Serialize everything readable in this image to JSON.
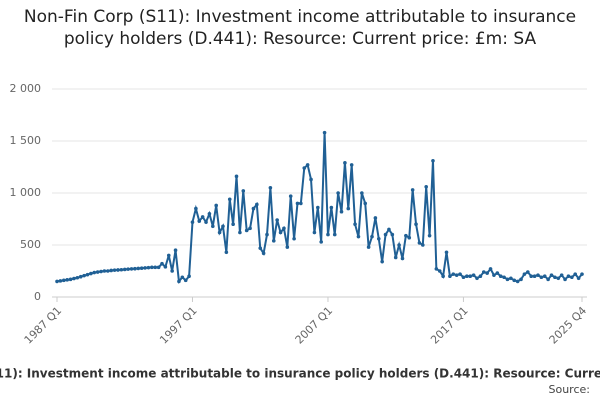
{
  "chart_data": {
    "type": "line",
    "title": "Non-Fin Corp (S11): Investment income attributable to insurance policy holders (D.441): Resource: Current price: £m: SA",
    "categories": [
      "1987 Q1",
      null,
      null,
      null,
      null,
      null,
      null,
      null,
      null,
      null,
      null,
      null,
      null,
      null,
      null,
      null,
      null,
      null,
      null,
      null,
      null,
      null,
      null,
      null,
      null,
      null,
      null,
      null,
      null,
      null,
      null,
      null,
      null,
      null,
      null,
      null,
      null,
      null,
      null,
      null,
      "1997 Q1",
      null,
      null,
      null,
      null,
      null,
      null,
      null,
      null,
      null,
      null,
      null,
      null,
      null,
      null,
      null,
      null,
      null,
      null,
      null,
      null,
      null,
      null,
      null,
      null,
      null,
      null,
      null,
      null,
      null,
      null,
      null,
      null,
      null,
      null,
      null,
      null,
      null,
      null,
      null,
      "2007 Q1",
      null,
      null,
      null,
      null,
      null,
      null,
      null,
      null,
      null,
      null,
      null,
      null,
      null,
      null,
      null,
      null,
      null,
      null,
      null,
      null,
      null,
      null,
      null,
      null,
      null,
      null,
      null,
      null,
      null,
      null,
      null,
      null,
      null,
      null,
      null,
      null,
      null,
      null,
      null,
      "2017 Q1",
      null,
      null,
      null,
      null,
      null,
      null,
      null,
      null,
      null,
      null,
      null,
      null,
      null,
      null,
      null,
      null,
      null,
      null,
      null,
      null,
      null,
      null,
      null,
      null,
      null,
      null,
      null,
      null,
      null,
      null,
      null,
      null,
      null,
      null,
      "2025 Q4"
    ],
    "series": [
      {
        "name": "Non-Fin Corp (S11): Investment income attributable to insurance policy holders (D.441): Resource: Current price: £m: SA",
        "color": "#206095",
        "values": [
          150,
          155,
          160,
          165,
          170,
          178,
          185,
          195,
          205,
          215,
          225,
          235,
          240,
          245,
          250,
          250,
          255,
          258,
          260,
          262,
          265,
          268,
          270,
          272,
          275,
          277,
          280,
          282,
          285,
          285,
          285,
          320,
          290,
          400,
          250,
          450,
          150,
          190,
          160,
          200,
          720,
          850,
          730,
          770,
          720,
          800,
          680,
          880,
          620,
          680,
          430,
          940,
          700,
          1160,
          620,
          1020,
          640,
          660,
          850,
          890,
          470,
          420,
          600,
          1050,
          540,
          740,
          620,
          660,
          480,
          970,
          560,
          900,
          900,
          1240,
          1270,
          1130,
          620,
          860,
          530,
          1580,
          600,
          860,
          600,
          1000,
          820,
          1290,
          850,
          1270,
          700,
          580,
          1000,
          900,
          480,
          580,
          760,
          560,
          340,
          600,
          650,
          600,
          380,
          500,
          370,
          590,
          570,
          1030,
          700,
          520,
          500,
          1060,
          590,
          1310,
          270,
          250,
          200,
          430,
          200,
          220,
          210,
          220,
          190,
          200,
          200,
          210,
          180,
          200,
          240,
          230,
          270,
          210,
          230,
          200,
          190,
          170,
          180,
          160,
          150,
          170,
          220,
          240,
          200,
          200,
          210,
          190,
          200,
          170,
          210,
          190,
          180,
          210,
          170,
          200,
          190,
          220,
          180,
          220
        ]
      }
    ],
    "ylim": [
      0,
      2000
    ],
    "yticks": [
      0,
      500,
      {
        "value": 1000,
        "label": "1 000"
      },
      {
        "value": 1500,
        "label": "1 500"
      },
      {
        "value": 2000,
        "label": "2 000"
      }
    ],
    "grid": true,
    "source": "Source:"
  }
}
